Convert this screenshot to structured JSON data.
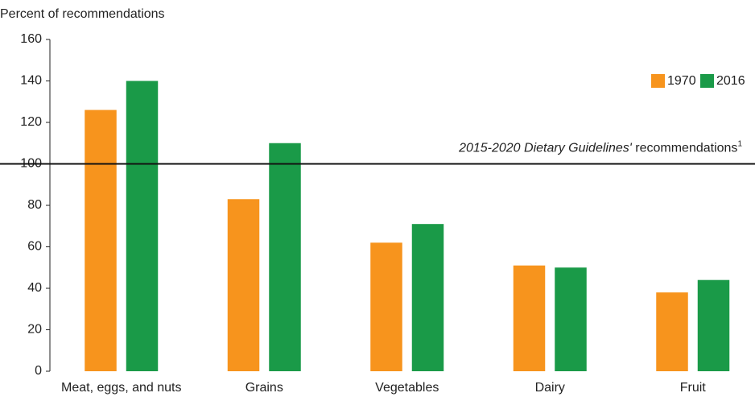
{
  "chart_data": {
    "type": "bar",
    "y_label": "Percent of recommendations",
    "categories": [
      "Meat, eggs, and nuts",
      "Grains",
      "Vegetables",
      "Dairy",
      "Fruit"
    ],
    "series": [
      {
        "name": "1970",
        "color": "#f7941d",
        "values": [
          126,
          83,
          62,
          51,
          38
        ]
      },
      {
        "name": "2016",
        "color": "#1a9a48",
        "values": [
          140,
          110,
          71,
          50,
          44
        ]
      }
    ],
    "ylim": [
      0,
      160
    ],
    "yticks": [
      0,
      20,
      40,
      60,
      80,
      100,
      120,
      140,
      160
    ],
    "legend": "top-right",
    "reference_line": {
      "value": 100,
      "italic_text": "2015-2020 Dietary Guidelines'",
      "text": " recommendations",
      "footnote": "1"
    }
  }
}
